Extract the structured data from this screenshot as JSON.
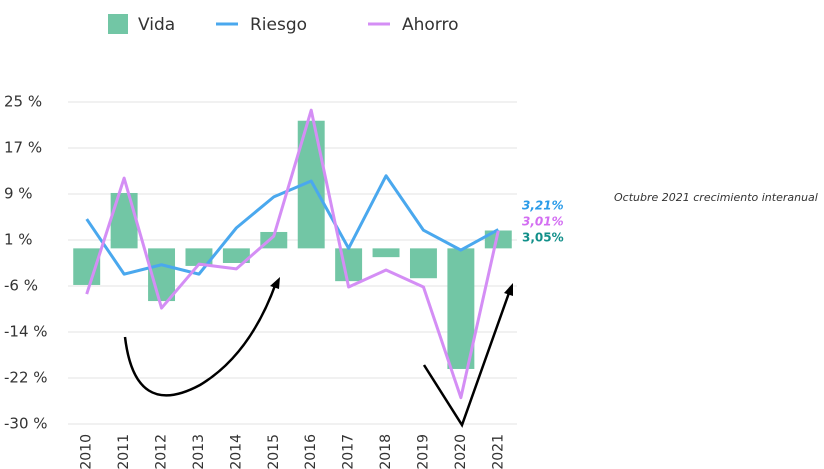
{
  "chart_data": {
    "type": "bar_line",
    "categories": [
      "2010",
      "2011",
      "2012",
      "2013",
      "2014",
      "2015",
      "2016",
      "2017",
      "2018",
      "2019",
      "2020",
      "2021"
    ],
    "series": [
      {
        "name": "Vida",
        "type": "bar",
        "color": "#72c6a5",
        "label_color": "#12908a",
        "values": [
          -6.25,
          9.46,
          -9.0,
          -3.0,
          -2.5,
          2.8,
          21.8,
          -5.6,
          -1.5,
          -5.1,
          -20.6,
          3.05
        ],
        "value_labels": [
          null,
          null,
          null,
          null,
          null,
          null,
          null,
          null,
          null,
          null,
          null,
          "3,05%"
        ]
      },
      {
        "name": "Riesgo",
        "type": "line",
        "color": "#4aa8ee",
        "label_color": "#2a9be8",
        "values": [
          5.0,
          -4.4,
          -2.8,
          -4.4,
          3.5,
          8.8,
          11.5,
          0.0,
          12.4,
          3.1,
          -0.3,
          3.21
        ],
        "value_labels": [
          null,
          null,
          null,
          null,
          null,
          null,
          null,
          null,
          null,
          null,
          null,
          "3,21%"
        ]
      },
      {
        "name": "Ahorro",
        "type": "line",
        "color": "#d48ef5",
        "label_color": "#d36ef2",
        "values": [
          -7.8,
          12.0,
          -10.2,
          -2.7,
          -3.5,
          2.1,
          23.6,
          -6.6,
          -3.7,
          -6.6,
          -25.5,
          3.01
        ],
        "value_labels": [
          null,
          null,
          null,
          null,
          null,
          null,
          null,
          null,
          null,
          null,
          null,
          "3,01%"
        ]
      }
    ],
    "ylim": [
      -30,
      25
    ],
    "yticks": [
      {
        "value": 25,
        "label": "25 %"
      },
      {
        "value": 17.14,
        "label": "17 %"
      },
      {
        "value": 9.29,
        "label": "9 %"
      },
      {
        "value": 1.43,
        "label": "1 %"
      },
      {
        "value": -6.43,
        "label": "-6 %"
      },
      {
        "value": -14.29,
        "label": "-14 %"
      },
      {
        "value": -22.14,
        "label": "-22 %"
      },
      {
        "value": -30,
        "label": "-30 %"
      }
    ],
    "grid": true,
    "legend": "top",
    "annotation": "Octubre 2021 crecimiento interanual"
  }
}
